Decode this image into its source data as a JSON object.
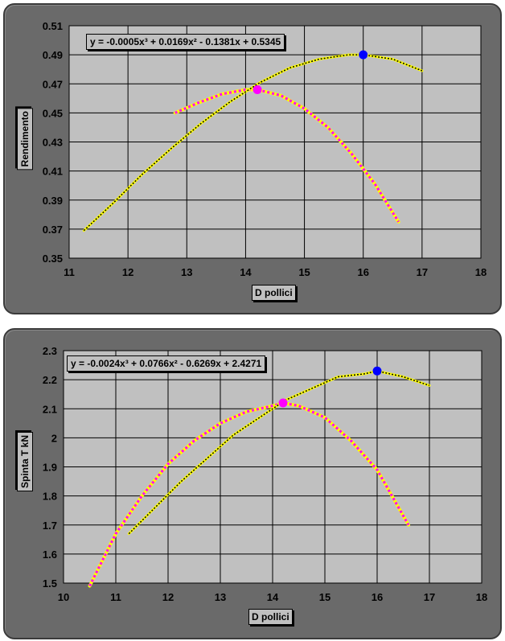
{
  "chart_data": [
    {
      "type": "line",
      "equation_text": "y = -0.0005x³ + 0.0169x² - 0.1381x + 0.5345",
      "xlabel": "D pollici",
      "ylabel": "Rendimento",
      "xlim": [
        11,
        18
      ],
      "ylim": [
        0.35,
        0.51
      ],
      "xticks": [
        "11",
        "12",
        "13",
        "14",
        "15",
        "16",
        "17",
        "18"
      ],
      "yticks": [
        "0.35",
        "0.37",
        "0.39",
        "0.41",
        "0.43",
        "0.45",
        "0.47",
        "0.49",
        "0.51"
      ],
      "grid": true,
      "colors": {
        "plot_bg": "#c0c0c0",
        "panel_bg": "#6a6a6a",
        "grid": "#000000",
        "series_a_dash": "#ff00ff",
        "series_b_dash": "#000000",
        "dot_a": "#ff00ff",
        "dot_b": "#0000ff",
        "base_line": "#ffff00"
      },
      "series": [
        {
          "x": [
            12.8,
            13.2,
            13.6,
            14.0,
            14.2,
            14.6,
            15.0,
            15.4,
            15.8,
            16.2,
            16.6
          ],
          "y": [
            0.45,
            0.457,
            0.463,
            0.466,
            0.466,
            0.462,
            0.453,
            0.44,
            0.422,
            0.401,
            0.375
          ]
        },
        {
          "x": [
            11.25,
            11.75,
            12.25,
            12.75,
            13.25,
            13.75,
            14.25,
            14.75,
            15.25,
            15.75,
            16.0,
            16.5,
            17.0
          ],
          "y": [
            0.369,
            0.388,
            0.408,
            0.426,
            0.443,
            0.458,
            0.471,
            0.481,
            0.487,
            0.49,
            0.49,
            0.487,
            0.479
          ]
        }
      ],
      "markers": [
        {
          "x": 14.2,
          "y": 0.466
        },
        {
          "x": 16.0,
          "y": 0.49
        }
      ]
    },
    {
      "type": "line",
      "equation_text": "y = -0.0024x³ + 0.0766x² - 0.6269x + 2.4271",
      "xlabel": "D pollici",
      "ylabel": "Spinta T kN",
      "xlim": [
        10,
        18
      ],
      "ylim": [
        1.5,
        2.3
      ],
      "xticks": [
        "10",
        "11",
        "12",
        "13",
        "14",
        "15",
        "16",
        "17",
        "18"
      ],
      "yticks": [
        "1.5",
        "1.6",
        "1.7",
        "1.8",
        "1.9",
        "2",
        "2.1",
        "2.2",
        "2.3"
      ],
      "grid": true,
      "colors": {
        "plot_bg": "#c0c0c0",
        "panel_bg": "#6a6a6a",
        "grid": "#000000",
        "series_a_dash": "#ff00ff",
        "series_b_dash": "#000000",
        "dot_a": "#ff00ff",
        "dot_b": "#0000ff",
        "base_line": "#ffff00"
      },
      "series": [
        {
          "x": [
            10.5,
            11.0,
            11.5,
            12.0,
            12.5,
            13.0,
            13.5,
            14.0,
            14.2,
            14.5,
            15.0,
            15.5,
            16.0,
            16.6
          ],
          "y": [
            1.49,
            1.67,
            1.8,
            1.91,
            1.99,
            2.05,
            2.09,
            2.11,
            2.12,
            2.11,
            2.07,
            1.99,
            1.89,
            1.7
          ]
        },
        {
          "x": [
            11.25,
            11.75,
            12.25,
            12.75,
            13.25,
            13.75,
            14.25,
            14.75,
            15.25,
            15.75,
            16.0,
            16.5,
            17.0
          ],
          "y": [
            1.67,
            1.76,
            1.85,
            1.93,
            2.01,
            2.07,
            2.13,
            2.17,
            2.21,
            2.22,
            2.23,
            2.21,
            2.18
          ]
        }
      ],
      "markers": [
        {
          "x": 14.2,
          "y": 2.12
        },
        {
          "x": 16.0,
          "y": 2.23
        }
      ]
    }
  ]
}
